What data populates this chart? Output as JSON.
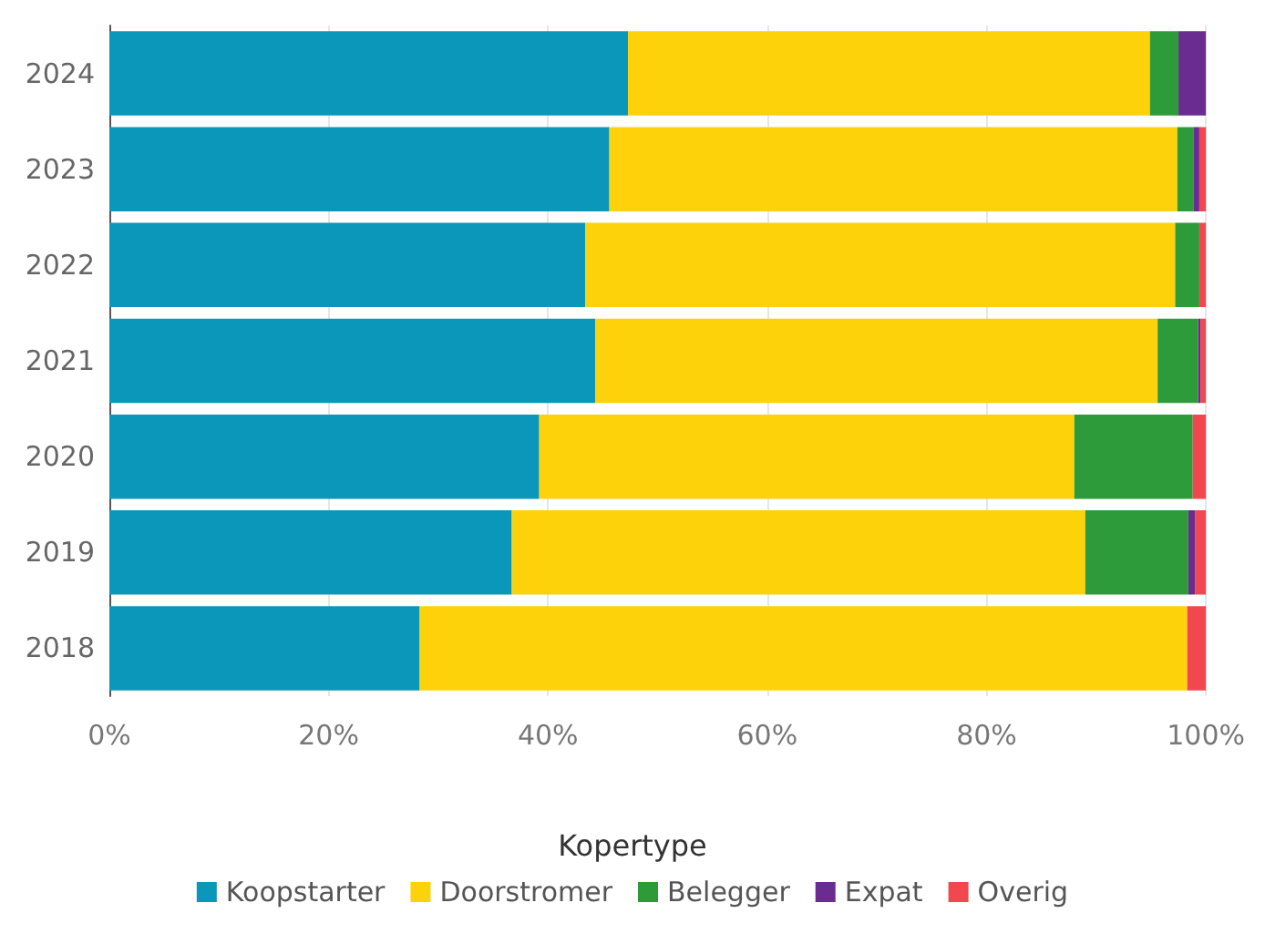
{
  "chart_data": {
    "type": "bar",
    "orientation": "horizontal",
    "stacked": true,
    "legend_title": "Kopertype",
    "legend": "bottom",
    "grid": "x",
    "categories": [
      "2024",
      "2023",
      "2022",
      "2021",
      "2020",
      "2019",
      "2018"
    ],
    "xlim": [
      0,
      100
    ],
    "xticks": [
      {
        "value": 0,
        "label": "0%"
      },
      {
        "value": 20,
        "label": "20%"
      },
      {
        "value": 40,
        "label": "40%"
      },
      {
        "value": 60,
        "label": "60%"
      },
      {
        "value": 80,
        "label": "80%"
      },
      {
        "value": 100,
        "label": "100%"
      }
    ],
    "series": [
      {
        "name": "Koopstarter",
        "color": "#0b97b9",
        "values": [
          47.3,
          45.6,
          43.4,
          44.3,
          39.2,
          36.7,
          28.3
        ]
      },
      {
        "name": "Doorstromer",
        "color": "#fdd20a",
        "values": [
          47.6,
          51.8,
          53.8,
          51.3,
          48.8,
          52.3,
          70.0
        ]
      },
      {
        "name": "Belegger",
        "color": "#2d9b3a",
        "values": [
          2.6,
          1.5,
          2.2,
          3.7,
          10.8,
          9.4,
          0
        ]
      },
      {
        "name": "Expat",
        "color": "#6b2c91",
        "values": [
          2.5,
          0.5,
          0,
          0.2,
          0,
          0.6,
          0
        ]
      },
      {
        "name": "Overig",
        "color": "#f0484e",
        "values": [
          0,
          0.6,
          0.6,
          0.5,
          1.2,
          1.0,
          1.7
        ]
      }
    ]
  }
}
